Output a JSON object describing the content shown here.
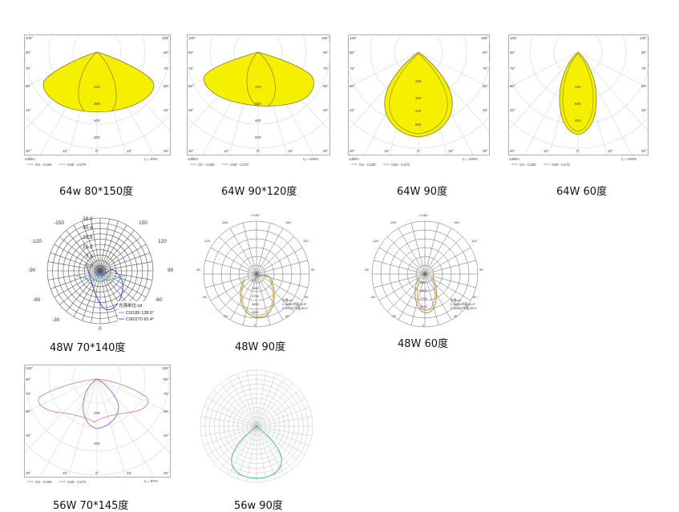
{
  "captions": {
    "c1": "64w 80*150度",
    "c2": "64W 90*120度",
    "c3": "64W 90度",
    "c4": "64W 60度",
    "c5": "48W 70*140度",
    "c6": "48W 90度",
    "c7": "48W 60度",
    "c8": "56W 70*145度",
    "c9": "56w 90度"
  },
  "panel1": {
    "unit": "cd/klm",
    "legend_c0": "C0 - C180",
    "legend_c90": "C90 - C270",
    "efficiency": "η = 93%",
    "angles_left": [
      "105°",
      "90°",
      "75°",
      "60°",
      "45°",
      "30°"
    ],
    "angles_right": [
      "105°",
      "90°",
      "75°",
      "60°",
      "45°",
      "30°"
    ],
    "bottom": [
      "30°",
      "15°",
      "0°",
      "15°",
      "30°"
    ],
    "rings": [
      "200",
      "300",
      "400",
      "500"
    ]
  },
  "panel2": {
    "unit": "cd/klm",
    "legend_c0": "C0 - C180",
    "legend_c90": "C90 - C270",
    "efficiency": "η = 100%",
    "angles_left": [
      "105°",
      "90°",
      "75°",
      "60°",
      "45°",
      "30°"
    ],
    "angles_right": [
      "105°",
      "90°",
      "75°",
      "60°",
      "45°",
      "30°"
    ],
    "bottom": [
      "30°",
      "15°",
      "0°",
      "15°",
      "30°"
    ],
    "rings": [
      "200",
      "300",
      "400",
      "500"
    ]
  },
  "panel3": {
    "unit": "cd/klm",
    "legend_c0": "C0 - C180",
    "legend_c90": "C90 - C270",
    "efficiency": "η = 100%",
    "angles_left": [
      "105°",
      "90°",
      "75°",
      "60°",
      "45°",
      "30°"
    ],
    "angles_right": [
      "105°",
      "90°",
      "75°",
      "60°",
      "45°",
      "30°"
    ],
    "bottom": [
      "30°",
      "15°",
      "0°",
      "15°",
      "30°"
    ],
    "rings": [
      "200",
      "300",
      "400",
      "500"
    ]
  },
  "panel4": {
    "unit": "cd/klm",
    "legend_c0": "C0 - C180",
    "legend_c90": "C90 - C270",
    "efficiency": "η = 100%",
    "angles_left": [
      "105°",
      "90°",
      "75°",
      "60°",
      "45°",
      "30°"
    ],
    "angles_right": [
      "105°",
      "90°",
      "75°",
      "60°",
      "45°",
      "30°"
    ],
    "bottom": [
      "30°",
      "15°",
      "0°",
      "15°",
      "30°"
    ],
    "rings": [
      "400",
      "600",
      "800"
    ]
  },
  "panel5": {
    "top": "38.0",
    "rings": [
      "30.4",
      "22.8",
      "15.2",
      "7.6"
    ],
    "center": "0.0",
    "angles": [
      "-150",
      "150",
      "-120",
      "120",
      "-90",
      "90",
      "-60",
      "60",
      "-30",
      "30",
      "0"
    ],
    "legend_title": "光强单位:cd",
    "legend_c0": "C0/180 138.6°",
    "legend_c90": "C90/270 65.4°",
    "colors": {
      "c0": "#2ec4d8",
      "c90": "#5a50e0"
    }
  },
  "panel6": {
    "top": "-/+180",
    "angles": [
      "-150",
      "150",
      "-120",
      "120",
      "-90",
      "90",
      "-60",
      "60",
      "-30",
      "30",
      "0"
    ],
    "rings": [
      "900",
      "1800",
      "2700",
      "3600",
      "4500"
    ],
    "legend_title": "光强:cd",
    "legend_c0": "C-0/180平面,90.5°",
    "legend_c90": "C-90/270平面,89.1°",
    "colors": {
      "c0": "#7a9a2a",
      "c90": "#e09020"
    }
  },
  "panel7": {
    "top": "-/+180",
    "angles": [
      "-150",
      "150",
      "-120",
      "120",
      "-90",
      "90",
      "-60",
      "60",
      "-30",
      "30",
      "0"
    ],
    "rings": [
      "900",
      "1800",
      "2700",
      "3600"
    ],
    "legend_title": "光强:cd",
    "legend_c0": "C-0/180平面,61.3°",
    "legend_c90": "C-90/270平面,59.4°",
    "colors": {
      "c0": "#7a9a2a",
      "c90": "#e06040"
    }
  },
  "panel8": {
    "unit": "cd/klm",
    "legend_c0": "C0 - C180",
    "legend_c90": "C90 - C270",
    "efficiency": "η = 87%",
    "angles_left": [
      "105°",
      "90°",
      "75°",
      "60°",
      "45°",
      "30°"
    ],
    "angles_right": [
      "105°",
      "90°",
      "75°",
      "60°",
      "45°",
      "30°"
    ],
    "bottom": [
      "30°",
      "15°",
      "0°",
      "15°",
      "30°"
    ],
    "rings": [
      "200",
      "400"
    ],
    "colors": {
      "c0": "#e07070",
      "c90": "#8080e0"
    }
  },
  "panel9": {
    "colors": {
      "curve": "#40b0a0"
    }
  }
}
